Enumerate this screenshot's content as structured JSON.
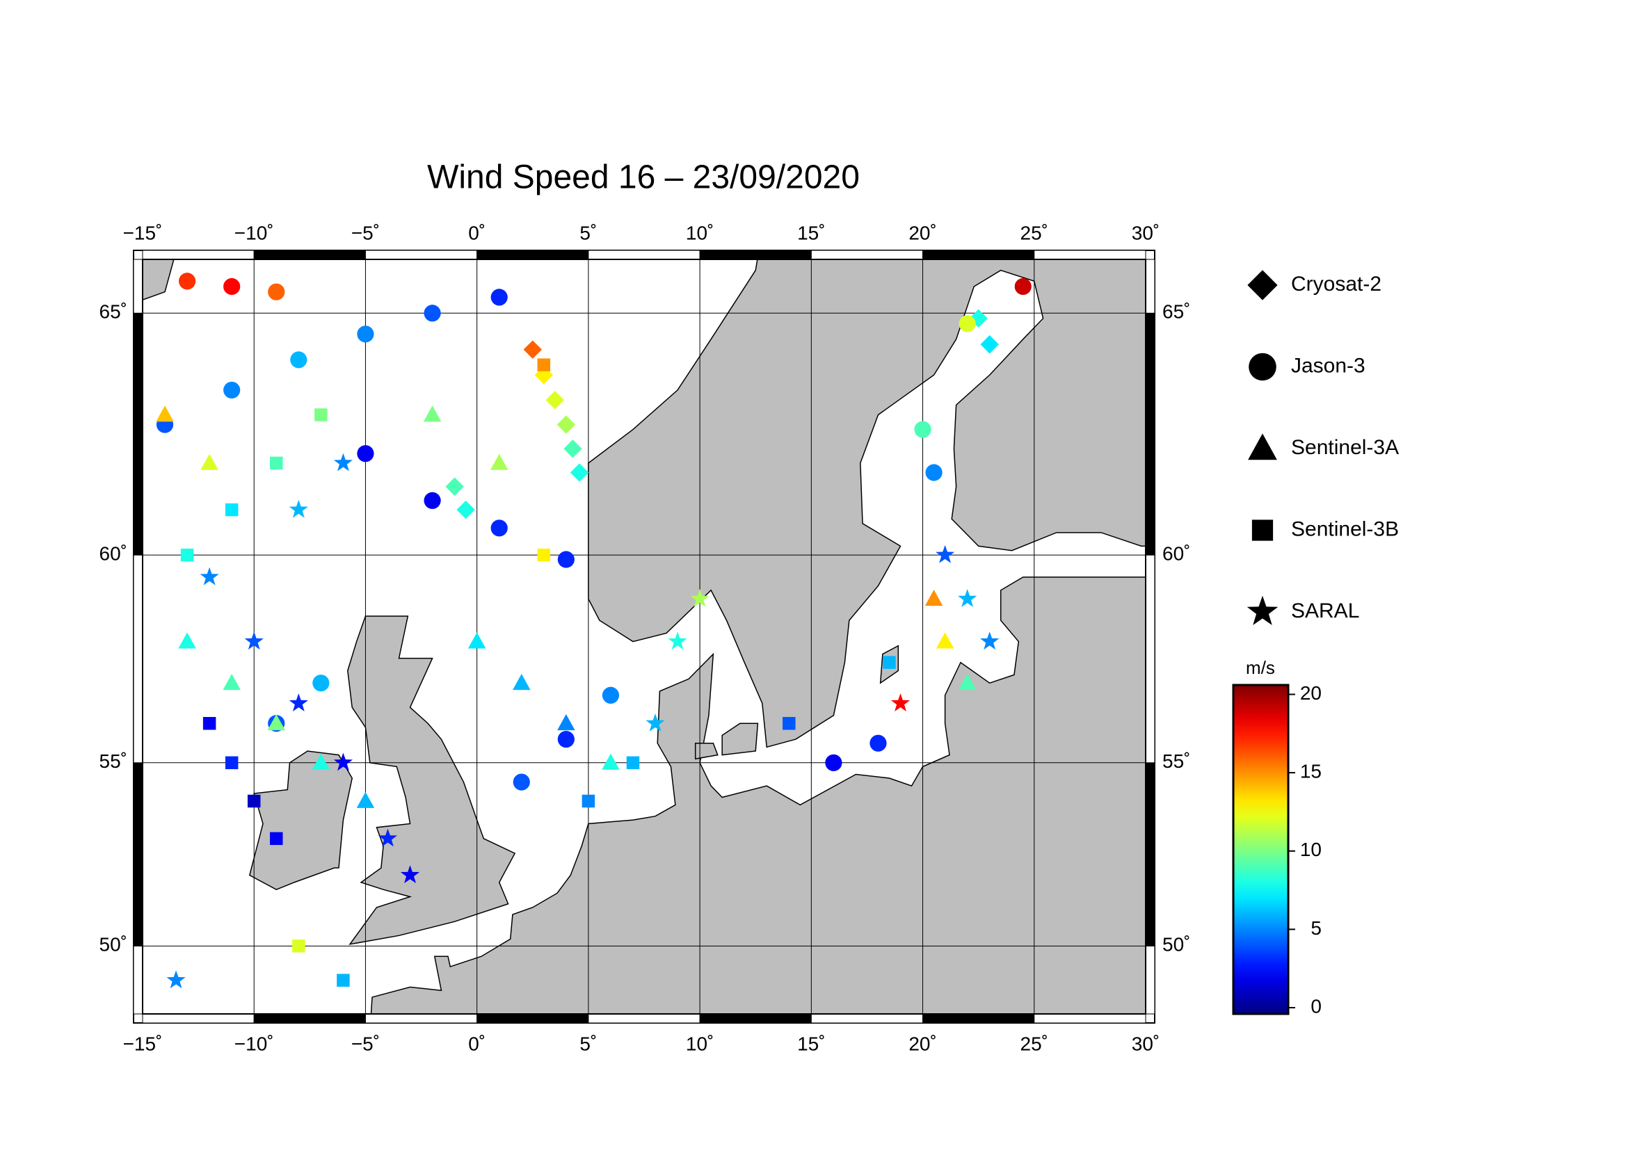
{
  "chart_data": {
    "type": "scatter",
    "title": "Wind Speed 16 – 23/09/2020",
    "xlim": [
      -15,
      30
    ],
    "ylim": [
      48.0,
      66.0
    ],
    "xticks": [
      {
        "value": -15,
        "label": "−15˚"
      },
      {
        "value": -10,
        "label": "−10˚"
      },
      {
        "value": -5,
        "label": "−5˚"
      },
      {
        "value": 0,
        "label": "0˚"
      },
      {
        "value": 5,
        "label": "5˚"
      },
      {
        "value": 10,
        "label": "10˚"
      },
      {
        "value": 15,
        "label": "15˚"
      },
      {
        "value": 20,
        "label": "20˚"
      },
      {
        "value": 25,
        "label": "25˚"
      },
      {
        "value": 30,
        "label": "30˚"
      }
    ],
    "yticks": [
      {
        "value": 50,
        "label": "50˚"
      },
      {
        "value": 55,
        "label": "55˚"
      },
      {
        "value": 60,
        "label": "60˚"
      },
      {
        "value": 65,
        "label": "65˚"
      }
    ],
    "grid": true,
    "colorbar": {
      "label": "m/s",
      "clim": [
        -0.4,
        20.6
      ],
      "ticks": [
        0,
        5,
        10,
        15,
        20
      ],
      "colormap": "jet"
    },
    "series": [
      {
        "name": "Cryosat-2",
        "marker": "diamond",
        "x": [
          2.5,
          3,
          3.5,
          4,
          4.3,
          4.6,
          22.5,
          23,
          -1,
          -0.5
        ],
        "y": [
          64.3,
          63.8,
          63.3,
          62.8,
          62.3,
          61.8,
          64.9,
          64.4,
          61.5,
          61
        ],
        "values": [
          16,
          13,
          12,
          11,
          9,
          8,
          8,
          7,
          9,
          8
        ]
      },
      {
        "name": "Jason-3",
        "marker": "circle",
        "x": [
          -14,
          -11,
          -8,
          -5,
          -2,
          1,
          -5,
          -2,
          1,
          4,
          -13,
          -11,
          -9,
          20,
          20.5,
          24.5,
          22,
          2,
          4,
          6,
          -9,
          -7,
          16,
          18
        ],
        "y": [
          62.8,
          63.5,
          64.1,
          64.6,
          65,
          65.3,
          62.2,
          61.2,
          60.6,
          59.9,
          65.6,
          65.5,
          65.4,
          62.7,
          61.8,
          65.5,
          64.8,
          54.5,
          55.6,
          56.7,
          56,
          57,
          55,
          55.5
        ],
        "values": [
          4,
          5,
          6,
          5,
          4,
          3,
          2,
          2,
          3,
          3,
          17,
          18,
          16,
          9,
          5,
          19,
          12,
          4,
          3,
          5,
          4,
          6,
          2,
          3
        ]
      },
      {
        "name": "Sentinel-3A",
        "marker": "triangle",
        "x": [
          -13,
          -11,
          -9,
          -7,
          -5,
          0,
          2,
          4,
          6,
          -14,
          -12,
          20.5,
          21,
          22,
          -2,
          1
        ],
        "y": [
          58,
          57,
          56,
          55,
          54,
          58,
          57,
          56,
          55,
          63,
          62,
          59,
          58,
          57,
          63,
          62
        ],
        "values": [
          8,
          9,
          10,
          8,
          6,
          7,
          6,
          5,
          8,
          14,
          12,
          15,
          13,
          9,
          10,
          11
        ]
      },
      {
        "name": "Sentinel-3B",
        "marker": "square",
        "x": [
          -12,
          -11,
          -10,
          -9,
          -13,
          -11,
          -9,
          -7,
          3,
          3,
          5,
          7,
          -8,
          -6,
          14,
          18.5
        ],
        "y": [
          56,
          55,
          54,
          53,
          60,
          61,
          62,
          63,
          64,
          60,
          54,
          55,
          50,
          49,
          56,
          57.5
        ],
        "values": [
          2,
          3,
          1,
          2,
          8,
          7,
          9,
          10,
          15,
          13,
          5,
          6,
          12,
          6,
          4,
          6
        ]
      },
      {
        "name": "SARAL",
        "marker": "star",
        "x": [
          -12,
          -10,
          -8,
          -6,
          -4,
          -3,
          -8,
          -6,
          8,
          9,
          10,
          21,
          22,
          23,
          19,
          -13.5
        ],
        "y": [
          59.5,
          58,
          56.5,
          55,
          53,
          52,
          61,
          62,
          56,
          58,
          59,
          60,
          59,
          58,
          56.5,
          49
        ],
        "values": [
          5,
          4,
          3,
          2,
          3,
          2,
          6,
          5,
          6,
          8,
          11,
          4,
          6,
          5,
          18,
          5
        ]
      }
    ]
  }
}
